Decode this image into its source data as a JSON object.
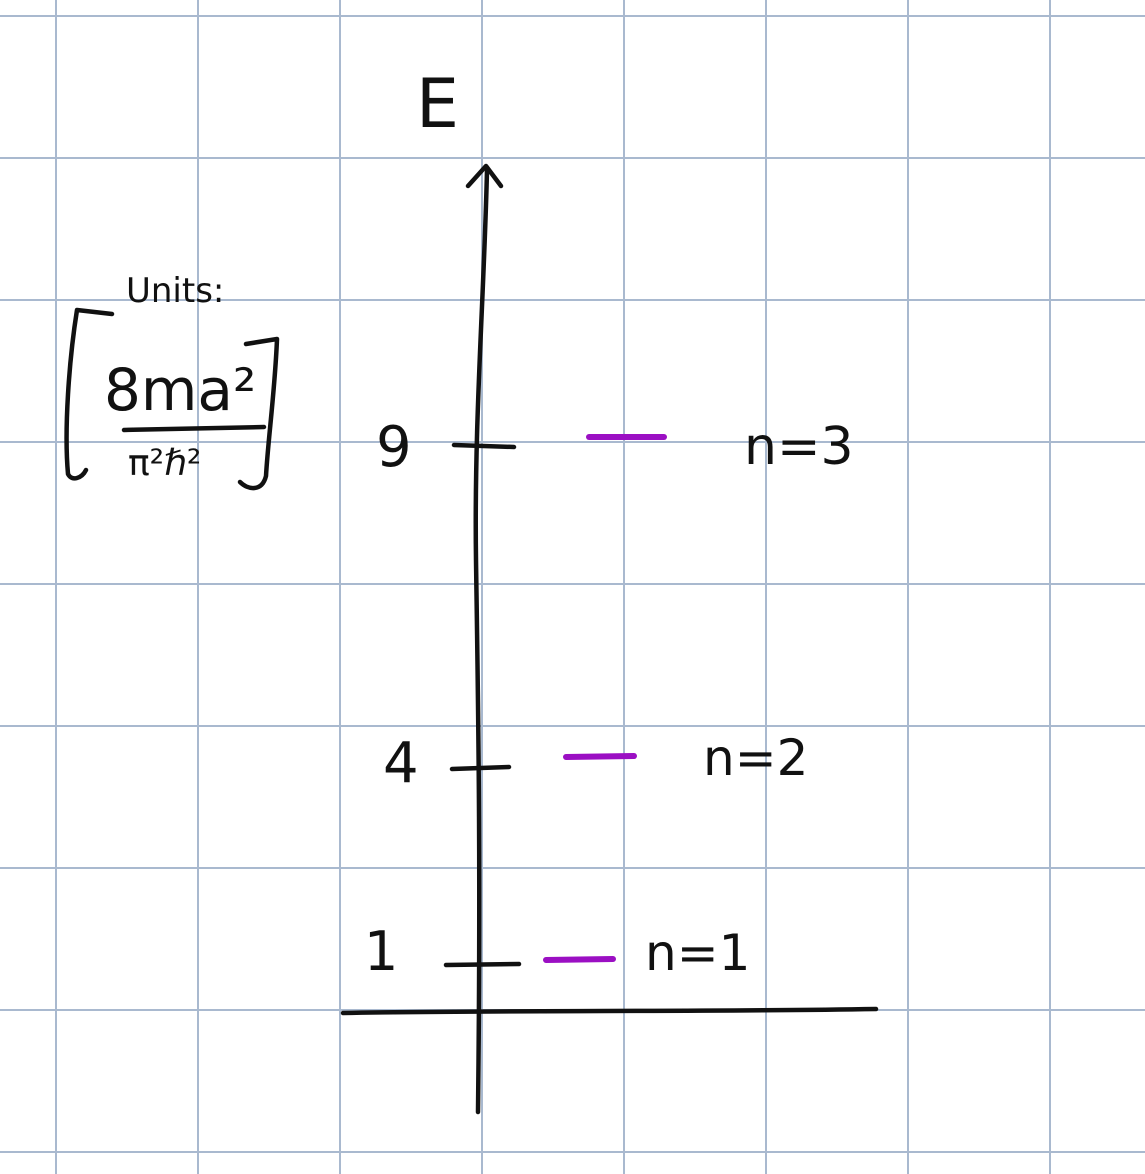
{
  "axis": {
    "label": "E"
  },
  "units": {
    "label": "Units:",
    "numerator": "8ma²",
    "denominator": "π²ℏ²"
  },
  "levels": [
    {
      "tick_label": "9",
      "state_label": "n=3",
      "energy": 9
    },
    {
      "tick_label": "4",
      "state_label": "n=2",
      "energy": 4
    },
    {
      "tick_label": "1",
      "state_label": "n=1",
      "energy": 1
    }
  ],
  "colors": {
    "grid": "#a9b9cf",
    "ink": "#111111",
    "level_line": "#9b0fc3",
    "background": "#ffffff"
  }
}
